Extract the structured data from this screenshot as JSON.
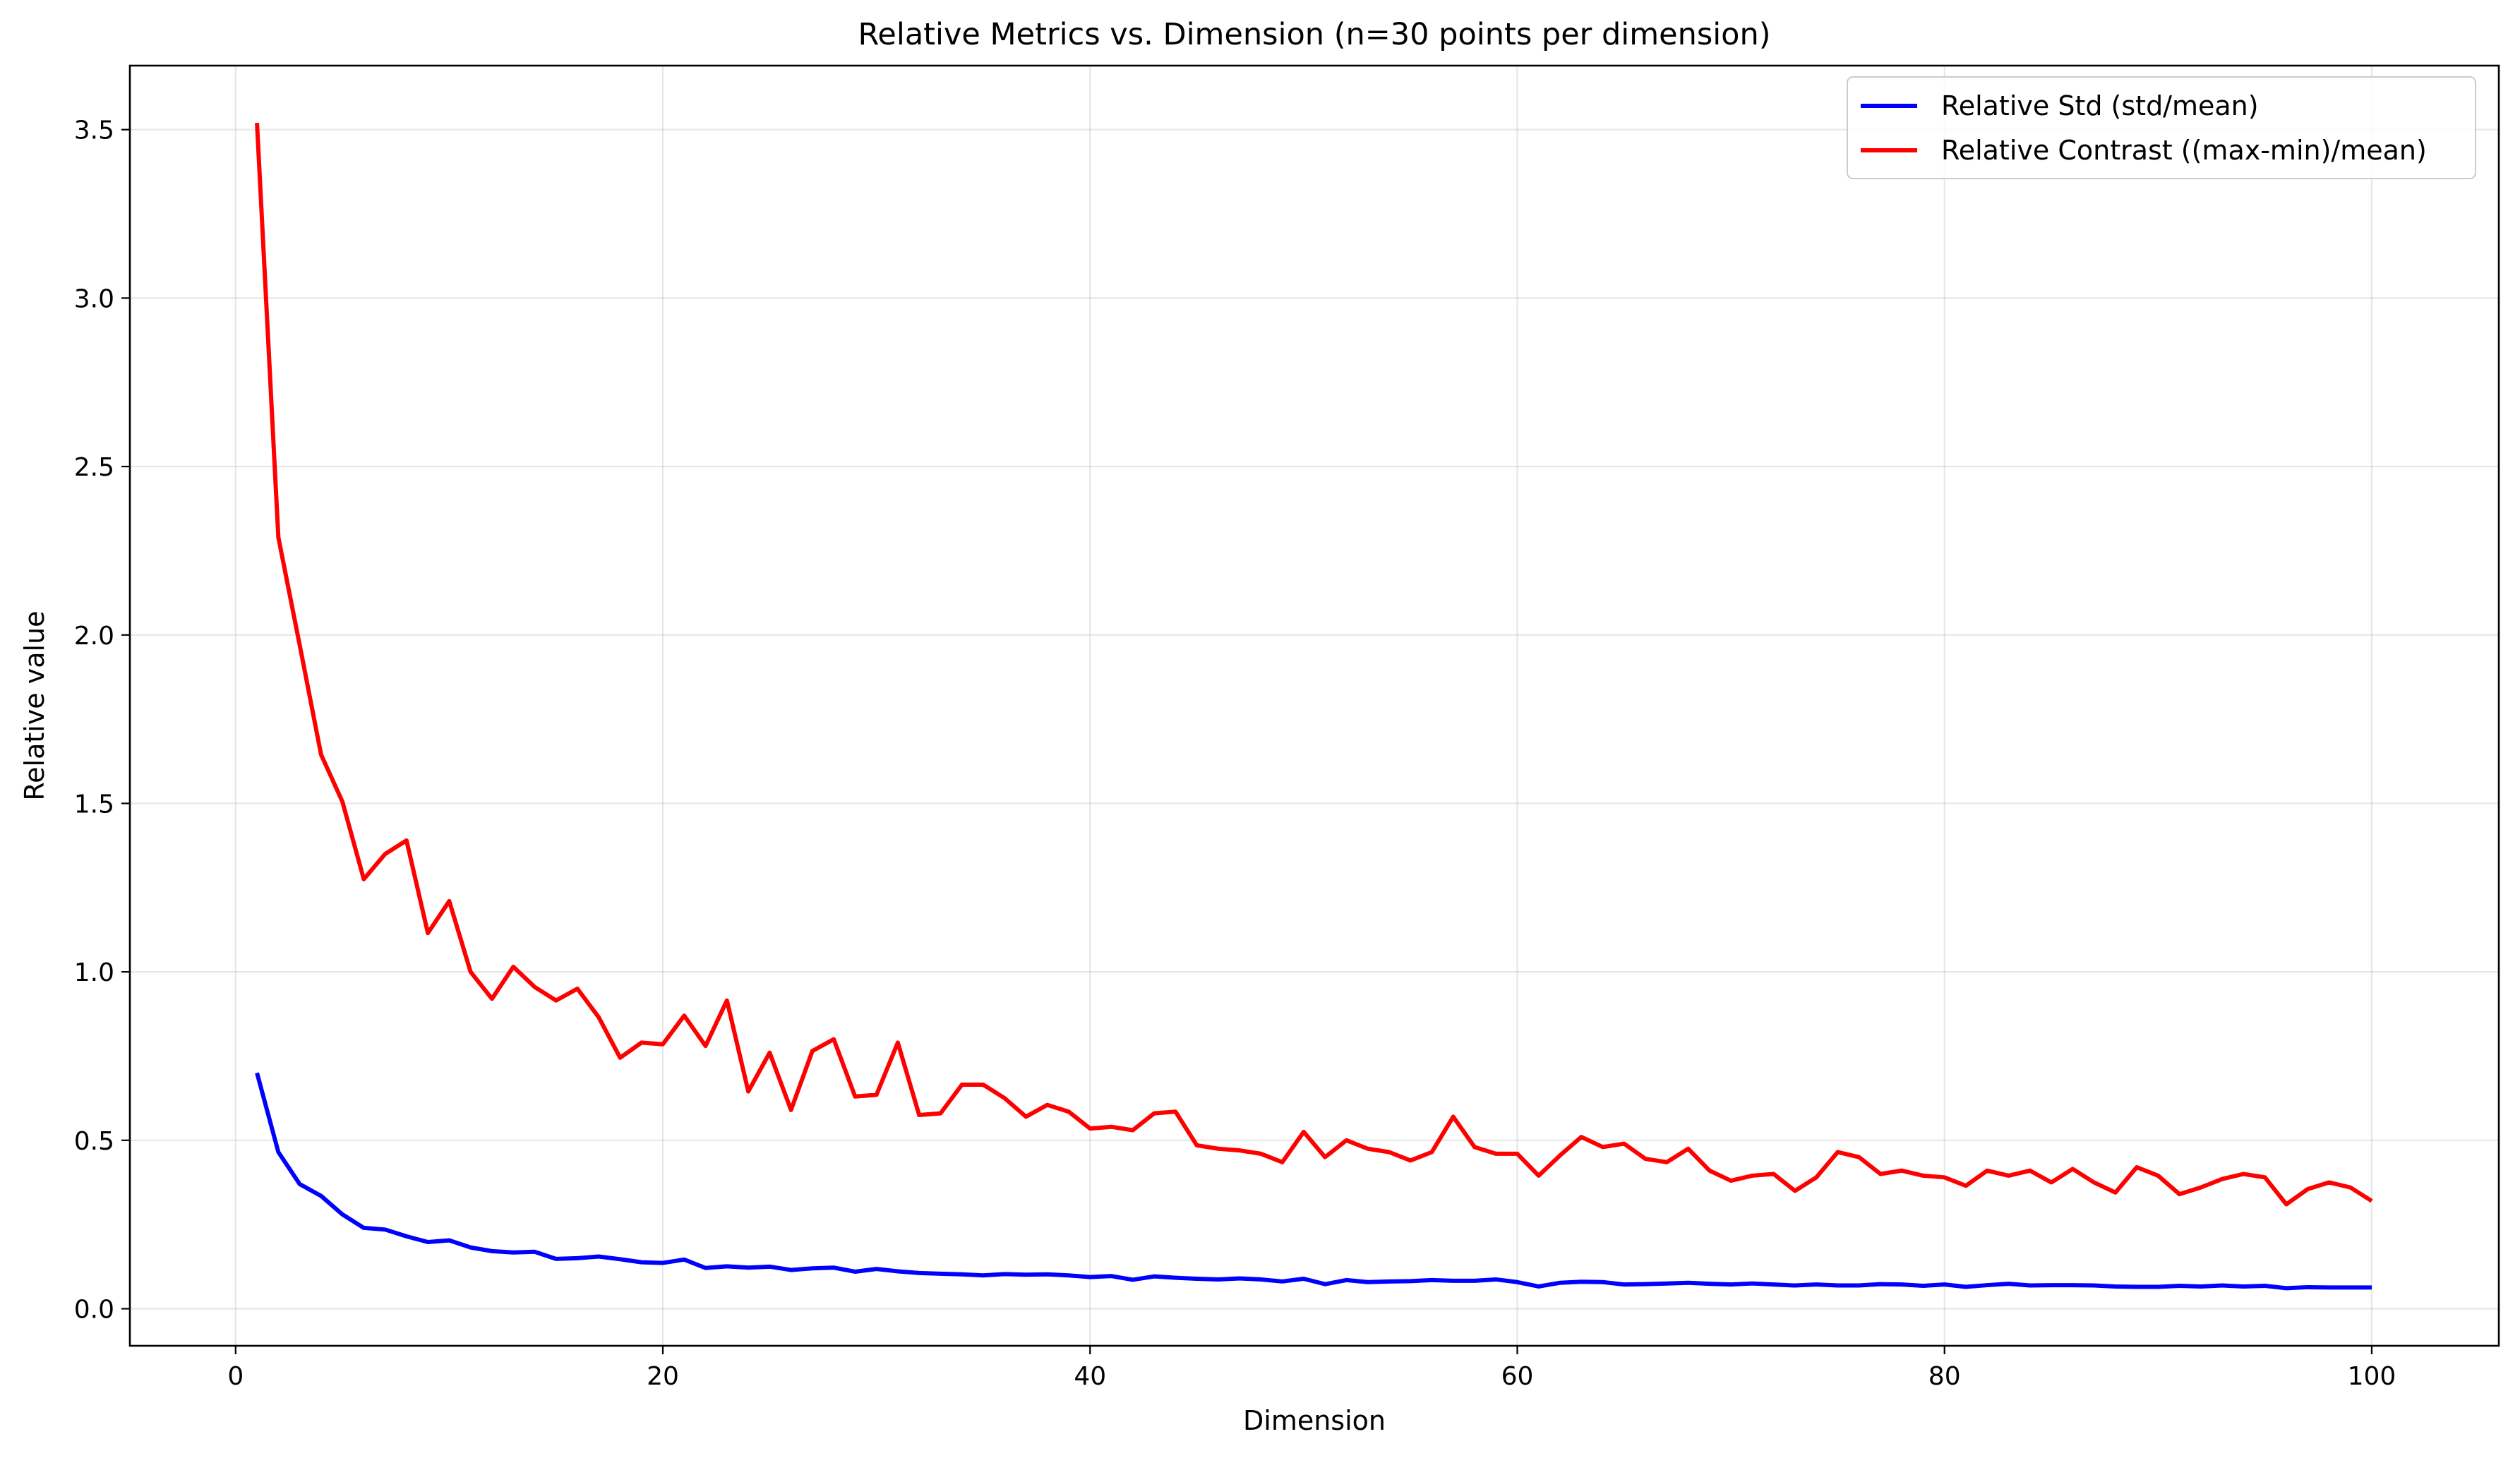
{
  "chart_data": {
    "type": "line",
    "title": "Relative Metrics vs. Dimension (n=30 points per dimension)",
    "xlabel": "Dimension",
    "ylabel": "Relative value",
    "xlim": [
      -4.95,
      105.95
    ],
    "ylim": [
      -0.11,
      3.69
    ],
    "xticks": [
      0,
      20,
      40,
      60,
      80,
      100
    ],
    "xtick_labels": [
      "0",
      "20",
      "40",
      "60",
      "80",
      "100"
    ],
    "yticks": [
      0.0,
      0.5,
      1.0,
      1.5,
      2.0,
      2.5,
      3.0,
      3.5
    ],
    "ytick_labels": [
      "0.0",
      "0.5",
      "1.0",
      "1.5",
      "2.0",
      "2.5",
      "3.0",
      "3.5"
    ],
    "grid": true,
    "legend_position": "top-right",
    "x_start": 1,
    "x_step": 1,
    "series": [
      {
        "name": "Relative Std (std/mean)",
        "color": "#0000ff",
        "values": [
          0.7,
          0.465,
          0.37,
          0.335,
          0.28,
          0.24,
          0.235,
          0.215,
          0.198,
          0.203,
          0.182,
          0.171,
          0.167,
          0.169,
          0.148,
          0.15,
          0.155,
          0.147,
          0.138,
          0.136,
          0.146,
          0.121,
          0.126,
          0.122,
          0.125,
          0.115,
          0.12,
          0.122,
          0.11,
          0.118,
          0.111,
          0.106,
          0.104,
          0.102,
          0.099,
          0.103,
          0.101,
          0.102,
          0.099,
          0.094,
          0.097,
          0.086,
          0.096,
          0.092,
          0.089,
          0.087,
          0.09,
          0.087,
          0.081,
          0.089,
          0.073,
          0.085,
          0.079,
          0.081,
          0.082,
          0.085,
          0.083,
          0.083,
          0.087,
          0.079,
          0.066,
          0.077,
          0.08,
          0.079,
          0.072,
          0.073,
          0.075,
          0.077,
          0.074,
          0.072,
          0.075,
          0.072,
          0.069,
          0.072,
          0.069,
          0.069,
          0.073,
          0.072,
          0.068,
          0.072,
          0.065,
          0.07,
          0.074,
          0.069,
          0.07,
          0.07,
          0.069,
          0.066,
          0.065,
          0.065,
          0.068,
          0.066,
          0.069,
          0.066,
          0.068,
          0.061,
          0.064,
          0.063,
          0.063,
          0.063
        ]
      },
      {
        "name": "Relative Contrast ((max-min)/mean)",
        "color": "#ff0000",
        "values": [
          3.52,
          2.29,
          1.97,
          1.645,
          1.505,
          1.275,
          1.35,
          1.39,
          1.115,
          1.21,
          1.0,
          0.92,
          1.015,
          0.955,
          0.915,
          0.95,
          0.865,
          0.745,
          0.79,
          0.785,
          0.87,
          0.78,
          0.915,
          0.645,
          0.76,
          0.59,
          0.765,
          0.8,
          0.63,
          0.635,
          0.79,
          0.575,
          0.58,
          0.665,
          0.665,
          0.625,
          0.57,
          0.605,
          0.585,
          0.535,
          0.54,
          0.53,
          0.58,
          0.585,
          0.485,
          0.475,
          0.47,
          0.46,
          0.435,
          0.525,
          0.45,
          0.5,
          0.475,
          0.465,
          0.44,
          0.465,
          0.57,
          0.48,
          0.46,
          0.46,
          0.395,
          0.455,
          0.51,
          0.48,
          0.49,
          0.445,
          0.435,
          0.475,
          0.41,
          0.38,
          0.395,
          0.4,
          0.35,
          0.39,
          0.465,
          0.45,
          0.4,
          0.41,
          0.395,
          0.39,
          0.365,
          0.41,
          0.395,
          0.41,
          0.375,
          0.415,
          0.375,
          0.345,
          0.42,
          0.395,
          0.34,
          0.36,
          0.385,
          0.4,
          0.39,
          0.31,
          0.355,
          0.375,
          0.36,
          0.32
        ]
      }
    ]
  }
}
